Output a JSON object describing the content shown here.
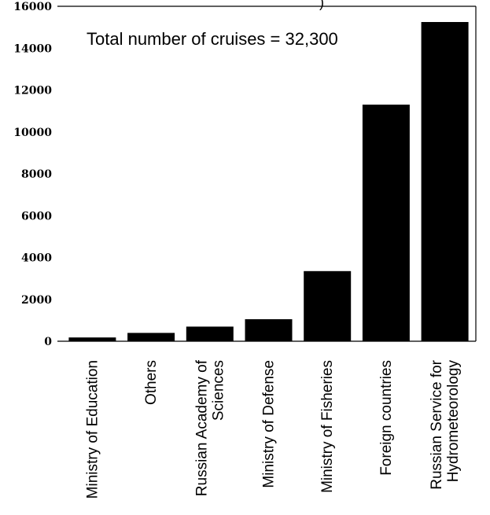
{
  "chart_data": {
    "type": "bar",
    "title_fragment": ")",
    "annotation": "Total number of cruises = 32,300",
    "categories": [
      [
        "Ministry of Education"
      ],
      [
        "Others"
      ],
      [
        "Russian Academy of",
        "Sciences"
      ],
      [
        "Ministry of Defense"
      ],
      [
        "Ministry of Fisheries"
      ],
      [
        "Foreign countries"
      ],
      [
        "Russian Service for",
        "Hydrometeorology"
      ]
    ],
    "values": [
      180,
      400,
      700,
      1050,
      3350,
      11300,
      15250
    ],
    "ylim": [
      0,
      16000
    ],
    "yticks": [
      0,
      2000,
      4000,
      6000,
      8000,
      10000,
      12000,
      14000,
      16000
    ],
    "bar_color": "#000000",
    "grid": false,
    "legend": "none"
  }
}
